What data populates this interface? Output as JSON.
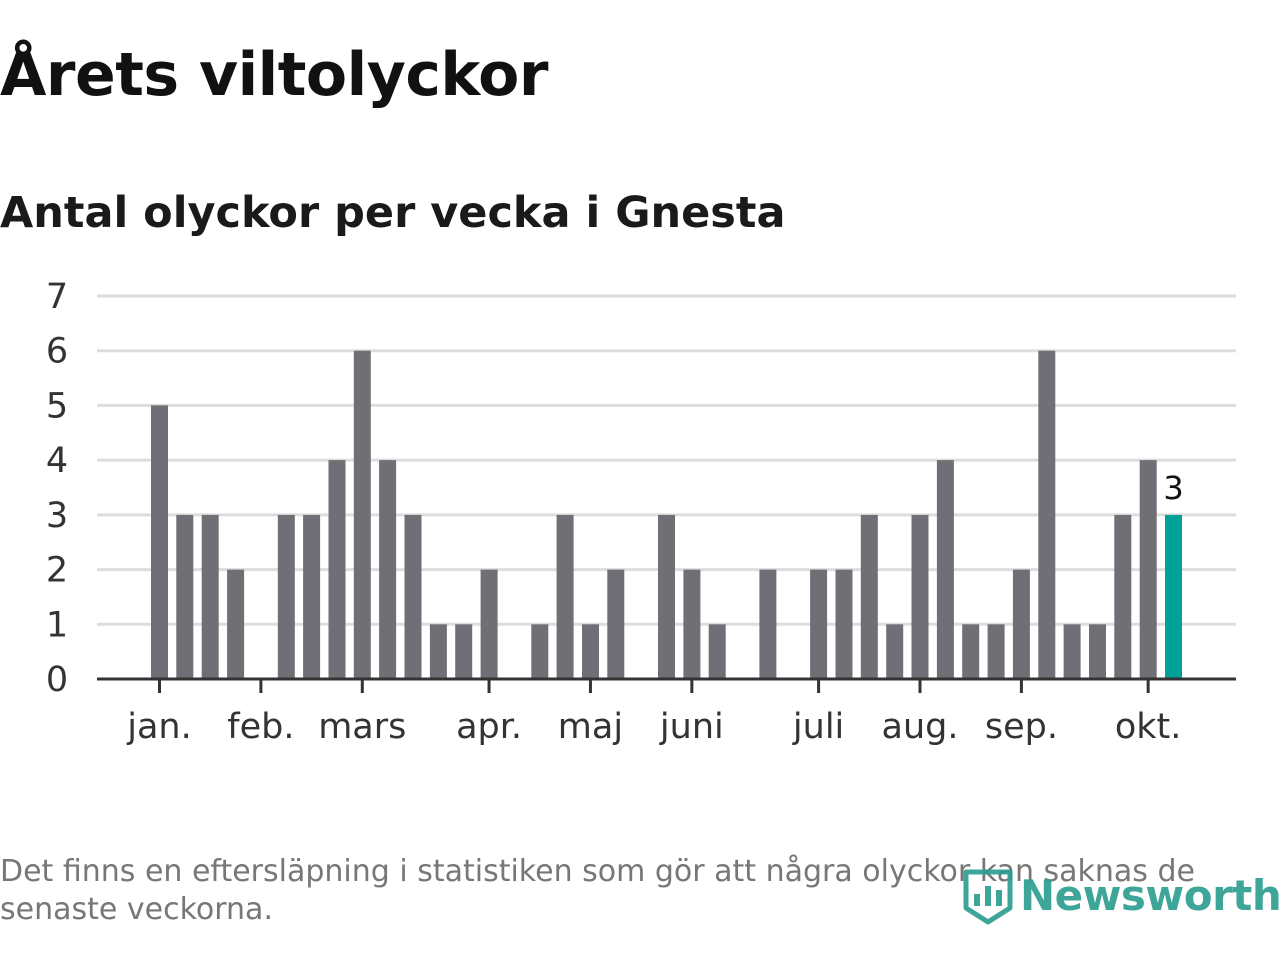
{
  "header": {
    "title": "Årets viltolyckor",
    "subtitle": "Antal olyckor per vecka i Gnesta"
  },
  "footnote": "Det finns en eftersläpning i statistiken som gör att några olyckor kan saknas de senaste veckorna.",
  "brand": {
    "name": "Newsworthy",
    "icon": "bar-chart-shield-icon",
    "color": "#2a9d8f"
  },
  "colors": {
    "bar": "#706f75",
    "highlight": "#00a196",
    "grid": "#dddddd",
    "axis": "#333333",
    "tick_label": "#333333"
  },
  "chart_data": {
    "type": "bar",
    "xlabel": "",
    "ylabel": "",
    "ylim": [
      0,
      7
    ],
    "yticks": [
      0,
      1,
      2,
      3,
      4,
      5,
      6,
      7
    ],
    "grid": true,
    "week_values": [
      5,
      3,
      3,
      2,
      0,
      3,
      3,
      4,
      6,
      4,
      3,
      1,
      1,
      2,
      0,
      1,
      3,
      1,
      2,
      0,
      3,
      2,
      1,
      0,
      2,
      0,
      2,
      2,
      3,
      1,
      3,
      4,
      1,
      1,
      2,
      6,
      1,
      1,
      3,
      4,
      3
    ],
    "highlight_index": 40,
    "highlight_label": "3",
    "month_labels": [
      {
        "label": "jan.",
        "week": 0
      },
      {
        "label": "feb.",
        "week": 4
      },
      {
        "label": "mars",
        "week": 8
      },
      {
        "label": "apr.",
        "week": 13
      },
      {
        "label": "maj",
        "week": 17
      },
      {
        "label": "juni",
        "week": 21
      },
      {
        "label": "juli",
        "week": 26
      },
      {
        "label": "aug.",
        "week": 30
      },
      {
        "label": "sep.",
        "week": 34
      },
      {
        "label": "okt.",
        "week": 39
      }
    ]
  }
}
